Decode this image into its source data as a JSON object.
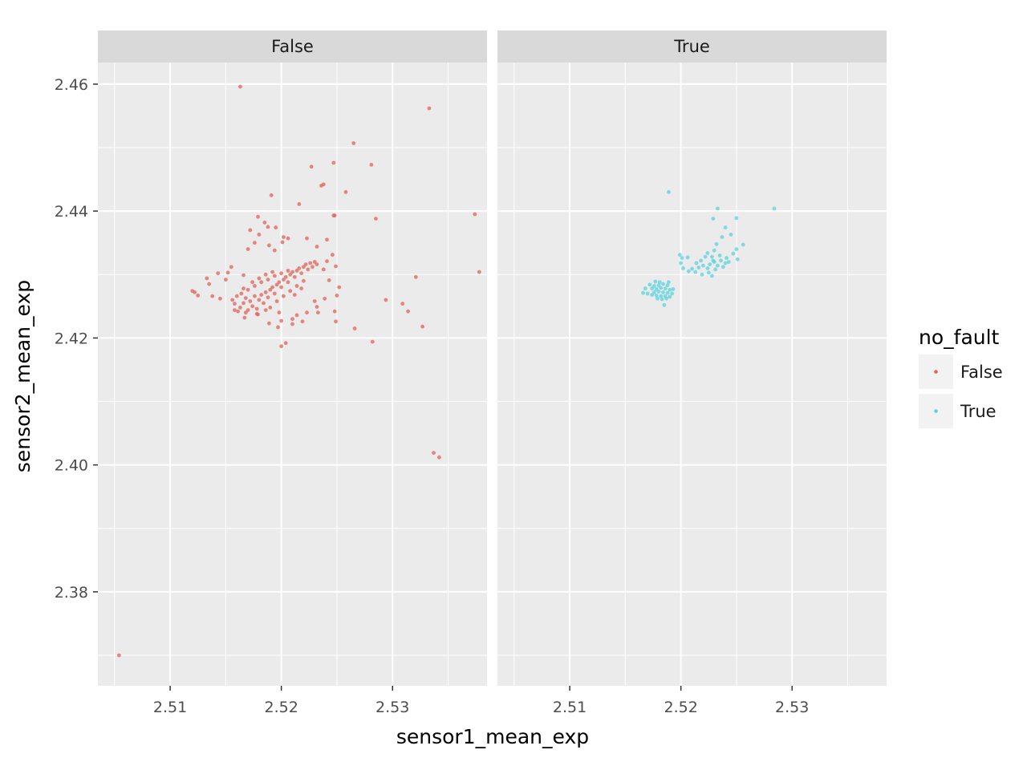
{
  "chart_data": {
    "type": "scatter",
    "facet_variable": "no_fault",
    "facets": [
      "False",
      "True"
    ],
    "xlabel": "sensor1_mean_exp",
    "ylabel": "sensor2_mean_exp",
    "xlim": [
      2.5035,
      2.5385
    ],
    "ylim": [
      2.3652,
      2.4634
    ],
    "x_ticks": [
      2.51,
      2.52,
      2.53
    ],
    "y_ticks": [
      2.38,
      2.4,
      2.42,
      2.44,
      2.46
    ],
    "x_tick_labels": [
      "2.51",
      "2.52",
      "2.53"
    ],
    "y_tick_labels": [
      "2.38",
      "2.40",
      "2.42",
      "2.44",
      "2.46"
    ],
    "grid": true,
    "legend": {
      "title": "no_fault",
      "position": "right",
      "entries": [
        {
          "label": "False",
          "color": "#e1625a"
        },
        {
          "label": "True",
          "color": "#5ad3dc"
        }
      ]
    },
    "series": [
      {
        "name": "False",
        "facet": "False",
        "color": "#e1625a",
        "points": [
          [
            2.5163,
            2.4596
          ],
          [
            2.5333,
            2.4562
          ],
          [
            2.5265,
            2.4507
          ],
          [
            2.5281,
            2.4473
          ],
          [
            2.5247,
            2.4476
          ],
          [
            2.5227,
            2.447
          ],
          [
            2.5238,
            2.4442
          ],
          [
            2.5236,
            2.444
          ],
          [
            2.5258,
            2.443
          ],
          [
            2.5191,
            2.4425
          ],
          [
            2.5216,
            2.4411
          ],
          [
            2.5248,
            2.4393
          ],
          [
            2.5247,
            2.4393
          ],
          [
            2.5285,
            2.4388
          ],
          [
            2.5374,
            2.4395
          ],
          [
            2.5179,
            2.4391
          ],
          [
            2.5188,
            2.4375
          ],
          [
            2.5185,
            2.4382
          ],
          [
            2.5195,
            2.4374
          ],
          [
            2.518,
            2.4363
          ],
          [
            2.5172,
            2.437
          ],
          [
            2.5202,
            2.4359
          ],
          [
            2.5206,
            2.4357
          ],
          [
            2.5201,
            2.4351
          ],
          [
            2.5223,
            2.4357
          ],
          [
            2.5241,
            2.4355
          ],
          [
            2.5176,
            2.435
          ],
          [
            2.5189,
            2.4346
          ],
          [
            2.517,
            2.434
          ],
          [
            2.5194,
            2.4338
          ],
          [
            2.5232,
            2.4344
          ],
          [
            2.5246,
            2.4331
          ],
          [
            2.5241,
            2.4321
          ],
          [
            2.5249,
            2.4313
          ],
          [
            2.5238,
            2.4308
          ],
          [
            2.5155,
            2.4312
          ],
          [
            2.5152,
            2.4303
          ],
          [
            2.5166,
            2.4299
          ],
          [
            2.515,
            2.4292
          ],
          [
            2.5143,
            2.4302
          ],
          [
            2.5133,
            2.4294
          ],
          [
            2.5135,
            2.4285
          ],
          [
            2.5122,
            2.4272
          ],
          [
            2.5125,
            2.4267
          ],
          [
            2.512,
            2.4274
          ],
          [
            2.5138,
            2.4266
          ],
          [
            2.5145,
            2.4262
          ],
          [
            2.5156,
            2.426
          ],
          [
            2.5243,
            2.4291
          ],
          [
            2.5252,
            2.428
          ],
          [
            2.525,
            2.4267
          ],
          [
            2.5239,
            2.4262
          ],
          [
            2.523,
            2.4258
          ],
          [
            2.5232,
            2.4249
          ],
          [
            2.5248,
            2.4242
          ],
          [
            2.5233,
            2.424
          ],
          [
            2.5214,
            2.4236
          ],
          [
            2.5223,
            2.424
          ],
          [
            2.521,
            2.423
          ],
          [
            2.52,
            2.4227
          ],
          [
            2.5189,
            2.4223
          ],
          [
            2.5197,
            2.4217
          ],
          [
            2.521,
            2.4222
          ],
          [
            2.5219,
            2.4226
          ],
          [
            2.5249,
            2.4226
          ],
          [
            2.5266,
            2.4215
          ],
          [
            2.5282,
            2.4194
          ],
          [
            2.52,
            2.4187
          ],
          [
            2.5204,
            2.4192
          ],
          [
            2.5179,
            2.4237
          ],
          [
            2.5167,
            2.4232
          ],
          [
            2.5294,
            2.426
          ],
          [
            2.5309,
            2.4254
          ],
          [
            2.5314,
            2.4242
          ],
          [
            2.5327,
            2.4218
          ],
          [
            2.5321,
            2.4296
          ],
          [
            2.5378,
            2.4304
          ],
          [
            2.5337,
            2.4019
          ],
          [
            2.5342,
            2.4012
          ],
          [
            2.5054,
            2.37
          ],
          [
            2.5161,
            2.4242
          ],
          [
            2.5163,
            2.4248
          ],
          [
            2.5166,
            2.4255
          ],
          [
            2.517,
            2.4244
          ],
          [
            2.5174,
            2.425
          ],
          [
            2.5178,
            2.4246
          ],
          [
            2.5172,
            2.4258
          ],
          [
            2.5168,
            2.4263
          ],
          [
            2.518,
            2.426
          ],
          [
            2.5184,
            2.4255
          ],
          [
            2.5176,
            2.4266
          ],
          [
            2.5182,
            2.4268
          ],
          [
            2.5188,
            2.4264
          ],
          [
            2.5186,
            2.4272
          ],
          [
            2.519,
            2.4276
          ],
          [
            2.5194,
            2.427
          ],
          [
            2.5192,
            2.428
          ],
          [
            2.5196,
            2.4284
          ],
          [
            2.52,
            2.428
          ],
          [
            2.5198,
            2.4288
          ],
          [
            2.5202,
            2.4292
          ],
          [
            2.5206,
            2.4288
          ],
          [
            2.5204,
            2.4296
          ],
          [
            2.5208,
            2.43
          ],
          [
            2.5212,
            2.4296
          ],
          [
            2.521,
            2.4304
          ],
          [
            2.5214,
            2.4306
          ],
          [
            2.5218,
            2.4302
          ],
          [
            2.5216,
            2.431
          ],
          [
            2.522,
            2.4312
          ],
          [
            2.5224,
            2.4308
          ],
          [
            2.5222,
            2.4316
          ],
          [
            2.5226,
            2.4318
          ],
          [
            2.5228,
            2.4312
          ],
          [
            2.523,
            2.432
          ],
          [
            2.5232,
            2.4316
          ],
          [
            2.5164,
            2.427
          ],
          [
            2.517,
            2.4276
          ],
          [
            2.5176,
            2.4282
          ],
          [
            2.5182,
            2.4288
          ],
          [
            2.5188,
            2.4292
          ],
          [
            2.5194,
            2.4298
          ],
          [
            2.52,
            2.4302
          ],
          [
            2.5206,
            2.4306
          ],
          [
            2.5174,
            2.4288
          ],
          [
            2.518,
            2.4294
          ],
          [
            2.5186,
            2.43
          ],
          [
            2.5192,
            2.4304
          ],
          [
            2.5166,
            2.4278
          ],
          [
            2.516,
            2.4266
          ],
          [
            2.5158,
            2.4254
          ],
          [
            2.519,
            2.4248
          ],
          [
            2.5196,
            2.4258
          ],
          [
            2.5202,
            2.4266
          ],
          [
            2.5208,
            2.4274
          ],
          [
            2.5214,
            2.4282
          ],
          [
            2.522,
            2.429
          ],
          [
            2.5212,
            2.4268
          ],
          [
            2.5218,
            2.4278
          ],
          [
            2.5198,
            2.424
          ],
          [
            2.5186,
            2.4244
          ],
          [
            2.5178,
            2.4238
          ],
          [
            2.5168,
            2.424
          ],
          [
            2.5158,
            2.4244
          ]
        ]
      },
      {
        "name": "True",
        "facet": "True",
        "color": "#5ad3dc",
        "points": [
          [
            2.5189,
            2.443
          ],
          [
            2.5233,
            2.4404
          ],
          [
            2.5284,
            2.4404
          ],
          [
            2.5229,
            2.4388
          ],
          [
            2.525,
            2.4389
          ],
          [
            2.524,
            2.4374
          ],
          [
            2.5245,
            2.4363
          ],
          [
            2.5237,
            2.4359
          ],
          [
            2.5256,
            2.4347
          ],
          [
            2.525,
            2.434
          ],
          [
            2.5232,
            2.4348
          ],
          [
            2.523,
            2.4338
          ],
          [
            2.5224,
            2.4334
          ],
          [
            2.5228,
            2.4328
          ],
          [
            2.5235,
            2.433
          ],
          [
            2.5241,
            2.4326
          ],
          [
            2.5247,
            2.4333
          ],
          [
            2.5251,
            2.4324
          ],
          [
            2.5243,
            2.432
          ],
          [
            2.5236,
            2.4322
          ],
          [
            2.5229,
            2.4322
          ],
          [
            2.5222,
            2.4328
          ],
          [
            2.5218,
            2.4322
          ],
          [
            2.5214,
            2.4318
          ],
          [
            2.522,
            2.4314
          ],
          [
            2.5226,
            2.4316
          ],
          [
            2.5233,
            2.4314
          ],
          [
            2.524,
            2.4318
          ],
          [
            2.5238,
            2.4312
          ],
          [
            2.5231,
            2.4308
          ],
          [
            2.5224,
            2.431
          ],
          [
            2.5216,
            2.4311
          ],
          [
            2.521,
            2.4309
          ],
          [
            2.5213,
            2.4304
          ],
          [
            2.5207,
            2.4305
          ],
          [
            2.5202,
            2.431
          ],
          [
            2.52,
            2.4318
          ],
          [
            2.5201,
            2.4326
          ],
          [
            2.5199,
            2.4331
          ],
          [
            2.5206,
            2.4327
          ],
          [
            2.5219,
            2.43
          ],
          [
            2.5225,
            2.4303
          ],
          [
            2.5228,
            2.4298
          ],
          [
            2.523,
            2.432
          ],
          [
            2.5172,
            2.4284
          ],
          [
            2.5176,
            2.4282
          ],
          [
            2.518,
            2.4283
          ],
          [
            2.5184,
            2.4285
          ],
          [
            2.5188,
            2.4283
          ],
          [
            2.5174,
            2.4278
          ],
          [
            2.5178,
            2.4277
          ],
          [
            2.5182,
            2.4279
          ],
          [
            2.5186,
            2.4278
          ],
          [
            2.519,
            2.4276
          ],
          [
            2.5176,
            2.4272
          ],
          [
            2.518,
            2.4273
          ],
          [
            2.5184,
            2.4272
          ],
          [
            2.5188,
            2.4271
          ],
          [
            2.5192,
            2.427
          ],
          [
            2.517,
            2.427
          ],
          [
            2.5174,
            2.4268
          ],
          [
            2.5178,
            2.4267
          ],
          [
            2.5182,
            2.4266
          ],
          [
            2.5186,
            2.4266
          ],
          [
            2.519,
            2.4265
          ],
          [
            2.5179,
            2.4262
          ],
          [
            2.5183,
            2.4261
          ],
          [
            2.5187,
            2.4262
          ],
          [
            2.5166,
            2.4271
          ],
          [
            2.5168,
            2.4278
          ],
          [
            2.5185,
            2.4252
          ],
          [
            2.5193,
            2.4277
          ],
          [
            2.5181,
            2.4288
          ],
          [
            2.5177,
            2.4289
          ],
          [
            2.5189,
            2.4288
          ]
        ]
      }
    ]
  }
}
